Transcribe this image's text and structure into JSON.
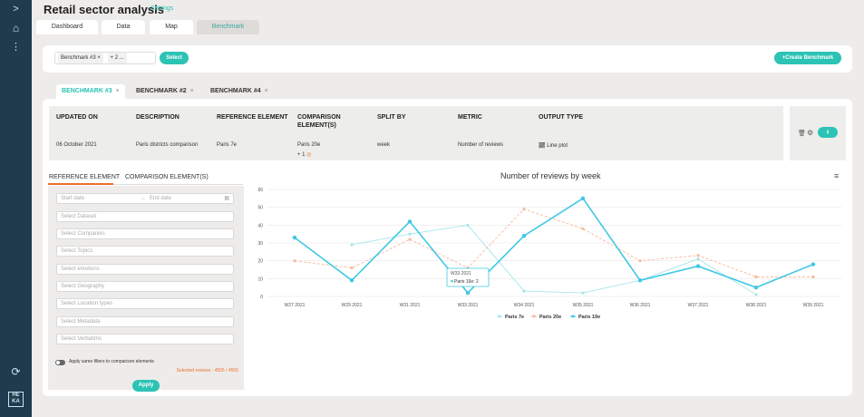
{
  "header": {
    "title": "Retail sector analysis",
    "settings": "Settings"
  },
  "sidebar": {
    "expand": ">",
    "home": "⌂",
    "more": "⋮",
    "logout": "⟳",
    "logo_line1": "HE",
    "logo_line2": "KA"
  },
  "main_tabs": [
    "Dashboard",
    "Data",
    "Map",
    "Benchmark"
  ],
  "selector": {
    "chip1": "Benchmark #3",
    "chip2": "+ 2 ...",
    "select_label": "Select",
    "create_label": "+Create Benchmark"
  },
  "benchmark_tabs": [
    "BENCHMARK #3",
    "BENCHMARK #2",
    "BENCHMARK #4"
  ],
  "info": {
    "headers": [
      "UPDATED ON",
      "DESCRIPTION",
      "REFERENCE ELEMENT",
      "COMPARISON ELEMENT(S)",
      "SPLIT BY",
      "METRIC",
      "OUTPUT TYPE"
    ],
    "updated_on": "06 October 2021",
    "description": "Paris districts comparison",
    "reference": "Paris 7e",
    "comparison": "Paris 20e",
    "comparison_more": "+ 1",
    "split_by": "week",
    "metric": "Number of reviews",
    "output_type": "Line plot"
  },
  "filters": {
    "tab_reference": "REFERENCE ELEMENT",
    "tab_comparison": "COMPARISON ELEMENT(S)",
    "start_date": "Start date",
    "end_date": "End date",
    "fields": [
      "Select Dataset",
      "Select Companies",
      "Select Topics",
      "Select emotions",
      "Select Geography",
      "Select Location types",
      "Select Metadata",
      "Select Verbatims"
    ],
    "apply_same": "Apply same filters to comparison elements",
    "selected_reviews": "Selected reviews : 4555 / 4555",
    "apply_label": "Apply"
  },
  "tooltip": {
    "title": "W33 2021",
    "line": "Paris 19e: 2"
  },
  "colors": {
    "accent": "#2cc3b5",
    "paris7": "#a6e6e9",
    "paris20": "#f7b99c",
    "paris19": "#3fc8e4",
    "orange": "#e8712b"
  },
  "chart_data": {
    "type": "line",
    "title": "Number of reviews by week",
    "categories": [
      "W27 2021",
      "W29 2021",
      "W31 2021",
      "W33 2021",
      "W34 2021",
      "W35 2021",
      "W36 2021",
      "W37 2021",
      "W38 2021",
      "W39 2021"
    ],
    "ylim": [
      0,
      60
    ],
    "yticks": [
      0,
      10,
      20,
      30,
      40,
      50,
      60
    ],
    "series": [
      {
        "name": "Paris 7e",
        "values": [
          null,
          29,
          35,
          40,
          3,
          2,
          9,
          21,
          1,
          null
        ]
      },
      {
        "name": "Paris 20e",
        "values": [
          20,
          16,
          32,
          16,
          49,
          38,
          20,
          23,
          11,
          11
        ]
      },
      {
        "name": "Paris 19e",
        "values": [
          33,
          9,
          42,
          2,
          34,
          55,
          9,
          17,
          5,
          18
        ]
      }
    ]
  }
}
